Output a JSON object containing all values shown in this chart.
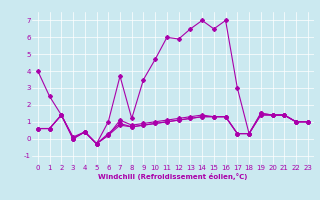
{
  "xlabel": "Windchill (Refroidissement éolien,°C)",
  "background_color": "#cbe9f0",
  "line_color": "#aa00aa",
  "xlim": [
    -0.5,
    23.5
  ],
  "ylim": [
    -1.5,
    7.5
  ],
  "yticks": [
    -1,
    0,
    1,
    2,
    3,
    4,
    5,
    6,
    7
  ],
  "xticks": [
    0,
    1,
    2,
    3,
    4,
    5,
    6,
    7,
    8,
    9,
    10,
    11,
    12,
    13,
    14,
    15,
    16,
    17,
    18,
    19,
    20,
    21,
    22,
    23
  ],
  "series": [
    [
      4.0,
      2.5,
      1.4,
      0.0,
      0.4,
      -0.3,
      1.0,
      3.7,
      1.2,
      3.5,
      4.7,
      6.0,
      5.9,
      6.5,
      7.0,
      6.5,
      7.0,
      3.0,
      0.3,
      1.5,
      1.4,
      1.4,
      1.0,
      1.0
    ],
    [
      0.6,
      0.6,
      1.4,
      0.0,
      0.4,
      -0.3,
      0.2,
      1.1,
      0.8,
      0.9,
      1.0,
      1.1,
      1.2,
      1.3,
      1.4,
      1.3,
      1.3,
      0.3,
      0.3,
      1.5,
      1.4,
      1.4,
      1.0,
      1.0
    ],
    [
      0.6,
      0.6,
      1.4,
      0.0,
      0.4,
      -0.3,
      0.2,
      0.8,
      0.7,
      0.8,
      0.9,
      1.0,
      1.1,
      1.2,
      1.3,
      1.3,
      1.3,
      0.3,
      0.3,
      1.4,
      1.4,
      1.4,
      1.0,
      1.0
    ],
    [
      0.6,
      0.6,
      1.4,
      0.1,
      0.4,
      -0.3,
      0.3,
      0.9,
      0.7,
      0.8,
      0.9,
      1.0,
      1.1,
      1.2,
      1.3,
      1.3,
      1.3,
      0.3,
      0.3,
      1.4,
      1.4,
      1.4,
      1.0,
      1.0
    ]
  ],
  "tick_label_fontsize": 5,
  "xlabel_fontsize": 5,
  "marker_size": 2,
  "linewidth": 0.8,
  "grid_color": "#ffffff",
  "grid_linewidth": 0.5
}
